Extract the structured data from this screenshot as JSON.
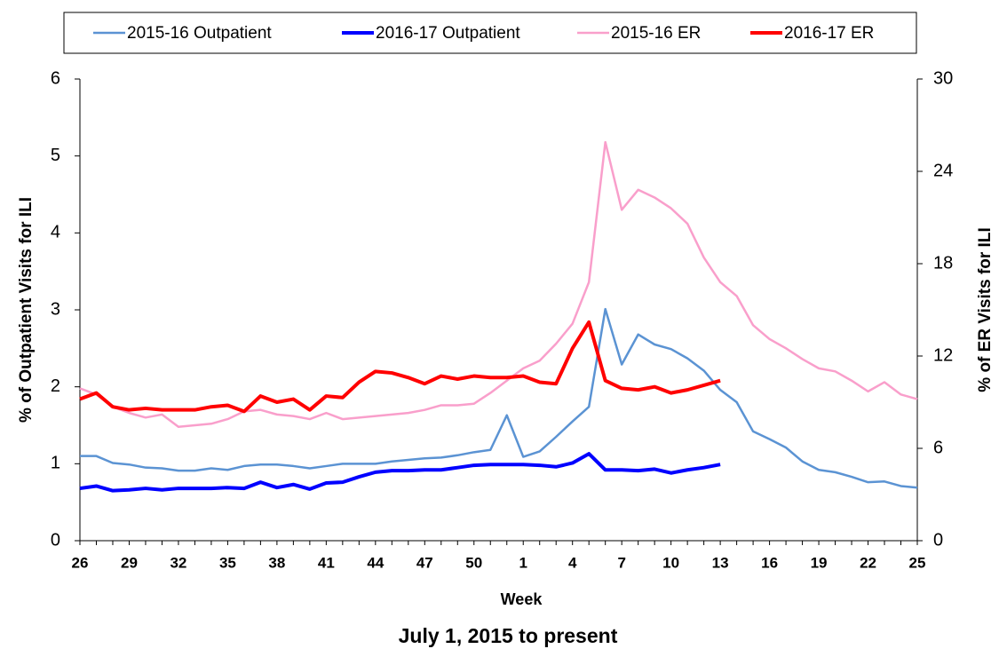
{
  "chart_data": {
    "type": "line",
    "title": "July 1, 2015 to present",
    "xlabel": "Week",
    "ylabel": "% of Outpatient Visits for ILI",
    "y2label": "% of ER Visits for ILI",
    "ylabel_color": "#0000ff",
    "y2label_color": "#ff0000",
    "categories": [
      "26",
      null,
      null,
      "29",
      null,
      null,
      "32",
      null,
      null,
      "35",
      null,
      null,
      "38",
      null,
      null,
      "41",
      null,
      null,
      "44",
      null,
      null,
      "47",
      null,
      null,
      "50",
      null,
      null,
      "1",
      null,
      null,
      "4",
      null,
      null,
      "7",
      null,
      null,
      "10",
      null,
      null,
      "13",
      null,
      null,
      "16",
      null,
      null,
      "19",
      null,
      null,
      "22",
      null,
      null,
      "25"
    ],
    "ylim": [
      0,
      6
    ],
    "yticks": [
      0,
      1,
      2,
      3,
      4,
      5,
      6
    ],
    "y2lim": [
      0,
      30
    ],
    "y2ticks": [
      0,
      6,
      12,
      18,
      24,
      30
    ],
    "legend": "top",
    "series": [
      {
        "name": "2015-16 Outpatient",
        "color": "#5b93d3",
        "width": 2.5,
        "values": [
          1.1,
          1.1,
          1.01,
          0.99,
          0.95,
          0.94,
          0.91,
          0.91,
          0.94,
          0.92,
          0.97,
          0.99,
          0.99,
          0.97,
          0.94,
          0.97,
          1.0,
          1.0,
          1.0,
          1.03,
          1.05,
          1.07,
          1.08,
          1.11,
          1.15,
          1.18,
          1.63,
          1.09,
          1.16,
          1.35,
          1.55,
          1.74,
          3.01,
          2.29,
          2.68,
          2.55,
          2.49,
          2.37,
          2.21,
          1.96,
          1.8,
          1.42,
          1.32,
          1.21,
          1.03,
          0.92,
          0.89,
          0.83,
          0.76,
          0.77,
          0.71,
          0.69
        ]
      },
      {
        "name": "2016-17 Outpatient",
        "color": "#0000ff",
        "width": 4,
        "values": [
          0.68,
          0.71,
          0.65,
          0.66,
          0.68,
          0.66,
          0.68,
          0.68,
          0.68,
          0.69,
          0.68,
          0.76,
          0.69,
          0.73,
          0.67,
          0.75,
          0.76,
          0.83,
          0.89,
          0.91,
          0.91,
          0.92,
          0.92,
          0.95,
          0.98,
          0.99,
          0.99,
          0.99,
          0.98,
          0.96,
          1.01,
          1.13,
          0.92,
          0.92,
          0.91,
          0.93,
          0.88,
          0.92,
          0.95,
          0.99,
          null,
          null,
          null,
          null,
          null,
          null,
          null,
          null,
          null,
          null,
          null,
          null
        ]
      },
      {
        "name": "2015-16 ER",
        "color": "#f99fcb",
        "width": 2.5,
        "axis": "y2",
        "values": [
          9.9,
          9.5,
          8.7,
          8.3,
          8.0,
          8.2,
          7.4,
          7.5,
          7.6,
          7.9,
          8.4,
          8.5,
          8.2,
          8.1,
          7.9,
          8.3,
          7.9,
          8.0,
          8.1,
          8.2,
          8.3,
          8.5,
          8.8,
          8.8,
          8.9,
          9.6,
          10.4,
          11.2,
          11.7,
          12.8,
          14.1,
          16.8,
          25.9,
          21.5,
          22.8,
          22.3,
          21.6,
          20.6,
          18.4,
          16.8,
          15.9,
          14.0,
          13.1,
          12.5,
          11.8,
          11.2,
          11.0,
          10.4,
          9.7,
          10.3,
          9.5,
          9.2
        ]
      },
      {
        "name": "2016-17 ER",
        "color": "#ff0000",
        "width": 4,
        "axis": "y2",
        "values": [
          9.2,
          9.6,
          8.7,
          8.5,
          8.6,
          8.5,
          8.5,
          8.5,
          8.7,
          8.8,
          8.4,
          9.4,
          9.0,
          9.2,
          8.5,
          9.4,
          9.3,
          10.3,
          11.0,
          10.9,
          10.6,
          10.2,
          10.7,
          10.5,
          10.7,
          10.6,
          10.6,
          10.7,
          10.3,
          10.2,
          12.5,
          14.2,
          10.4,
          9.9,
          9.8,
          10.0,
          9.6,
          9.8,
          10.1,
          10.4,
          null,
          null,
          null,
          null,
          null,
          null,
          null,
          null,
          null,
          null,
          null,
          null
        ]
      }
    ]
  }
}
